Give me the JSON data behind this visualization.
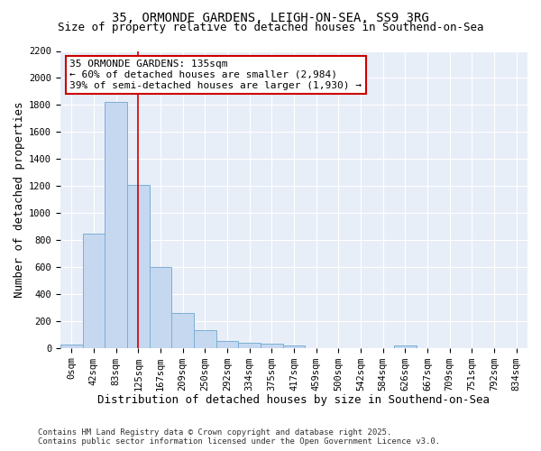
{
  "title1": "35, ORMONDE GARDENS, LEIGH-ON-SEA, SS9 3RG",
  "title2": "Size of property relative to detached houses in Southend-on-Sea",
  "xlabel": "Distribution of detached houses by size in Southend-on-Sea",
  "ylabel": "Number of detached properties",
  "bar_labels": [
    "0sqm",
    "42sqm",
    "83sqm",
    "125sqm",
    "167sqm",
    "209sqm",
    "250sqm",
    "292sqm",
    "334sqm",
    "375sqm",
    "417sqm",
    "459sqm",
    "500sqm",
    "542sqm",
    "584sqm",
    "626sqm",
    "667sqm",
    "709sqm",
    "751sqm",
    "792sqm",
    "834sqm"
  ],
  "bar_values": [
    22,
    845,
    1820,
    1210,
    600,
    255,
    130,
    50,
    38,
    28,
    18,
    0,
    0,
    0,
    0,
    18,
    0,
    0,
    0,
    0,
    0
  ],
  "bar_color": "#c5d8f0",
  "bar_edge_color": "#7bafd4",
  "vline_x": 3,
  "vline_color": "#cc0000",
  "annotation_text": "35 ORMONDE GARDENS: 135sqm\n← 60% of detached houses are smaller (2,984)\n39% of semi-detached houses are larger (1,930) →",
  "annotation_box_facecolor": "white",
  "annotation_box_edgecolor": "#cc0000",
  "ylim": [
    0,
    2200
  ],
  "yticks": [
    0,
    200,
    400,
    600,
    800,
    1000,
    1200,
    1400,
    1600,
    1800,
    2000,
    2200
  ],
  "footer1": "Contains HM Land Registry data © Crown copyright and database right 2025.",
  "footer2": "Contains public sector information licensed under the Open Government Licence v3.0.",
  "bg_color": "#ffffff",
  "plot_bg_color": "#e8eef8",
  "grid_color": "#ffffff",
  "title1_fontsize": 10,
  "title2_fontsize": 9,
  "annotation_fontsize": 8,
  "tick_fontsize": 7.5,
  "axis_label_fontsize": 9
}
